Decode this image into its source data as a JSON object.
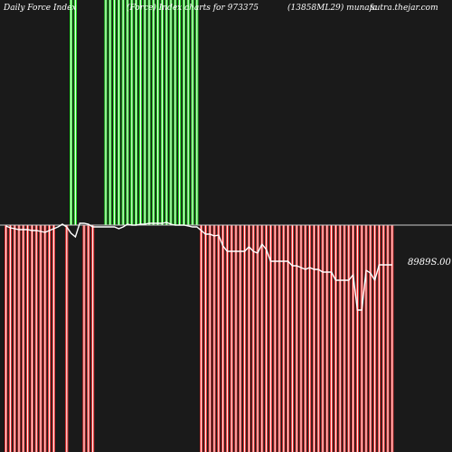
{
  "header": {
    "title_left": "Daily Force  Index",
    "title_mid": "(Force) Index charts for 973375",
    "title_right": "(13858ML29) munafa",
    "title_site": "sutra.thejar.com"
  },
  "colors": {
    "background": "#1a1a1a",
    "positive_bar": "#22dd22",
    "negative_bar": "#ee3333",
    "bar_core": "#ffffff",
    "line": "#ffffff",
    "zero_line": "#cccccc"
  },
  "chart_data": {
    "type": "bar",
    "title": "",
    "xlabel": "",
    "ylabel": "",
    "price_label": "8989S.00",
    "grid": false,
    "legend": "none",
    "force_index": [
      -1,
      -1,
      -1,
      -1,
      -1,
      -1,
      -1,
      -1,
      -1,
      -1,
      -1,
      -1,
      0,
      0,
      -1,
      1,
      1,
      0,
      -1,
      -1,
      -1,
      0,
      0,
      1,
      1,
      1,
      1,
      1,
      1,
      1,
      1,
      1,
      1,
      1,
      1,
      1,
      1,
      1,
      1,
      1,
      1,
      1,
      1,
      1,
      1,
      -1,
      -1,
      -1,
      -1,
      -1,
      -1,
      -1,
      -1,
      -1,
      -1,
      -1,
      -1,
      -1,
      -1,
      -1,
      -1,
      -1,
      -1,
      -1,
      -1,
      -1,
      -1,
      -1,
      -1,
      -1,
      -1,
      -1,
      -1,
      -1,
      -1,
      -1,
      -1,
      -1,
      -1,
      -1,
      -1,
      -1,
      -1,
      -1,
      -1,
      -1,
      -1,
      -1,
      -1,
      -1
    ],
    "price_line": [
      250,
      252,
      253,
      254,
      254,
      254,
      255,
      255,
      256,
      257,
      255,
      253,
      251,
      248,
      251,
      258,
      262,
      247,
      247,
      248,
      251,
      251,
      251,
      251,
      251,
      251,
      253,
      251,
      248,
      249,
      249,
      248,
      248,
      247,
      247,
      247,
      247,
      246,
      248,
      249,
      249,
      249,
      250,
      251,
      251,
      255,
      259,
      259,
      261,
      260,
      272,
      278,
      278,
      278,
      278,
      278,
      273,
      278,
      280,
      270,
      276,
      289,
      289,
      289,
      289,
      289,
      294,
      294,
      296,
      298,
      296,
      298,
      298,
      301,
      301,
      301,
      310,
      310,
      310,
      310,
      304,
      343,
      343,
      299,
      302,
      310,
      293,
      293,
      293,
      293
    ]
  }
}
